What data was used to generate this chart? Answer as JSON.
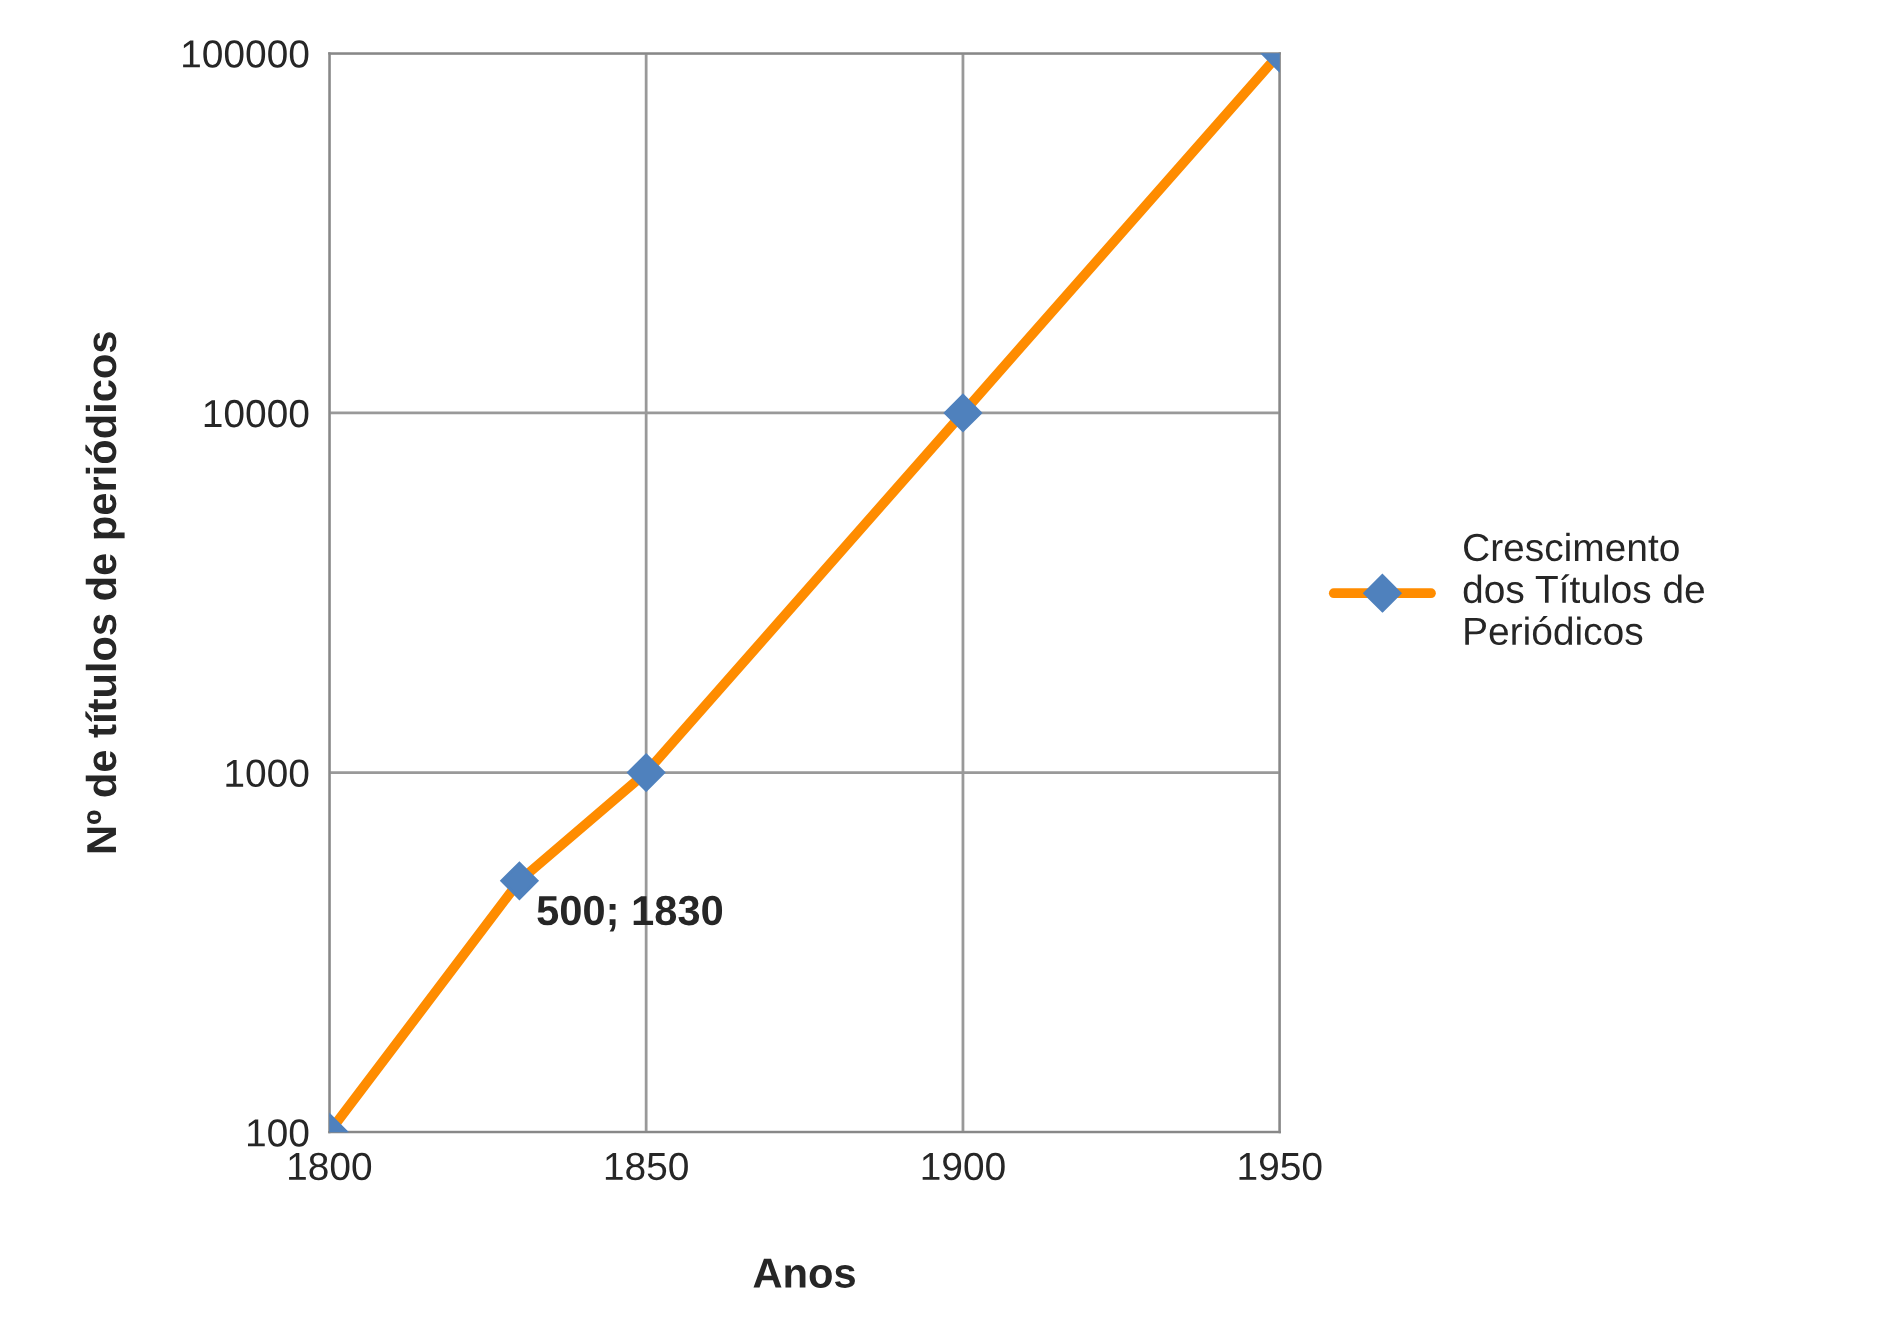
{
  "chart_data": {
    "type": "line",
    "xlabel": "Anos",
    "ylabel": "Nº de títulos de periódicos",
    "x": [
      1800,
      1830,
      1850,
      1900,
      1950
    ],
    "series": [
      {
        "name": "Crescimento\ndos Títulos de\nPeriódicos",
        "color": "#ff8c00",
        "values": [
          100,
          500,
          1000,
          10000,
          100000
        ]
      }
    ],
    "annotations": [
      {
        "text": "500; 1830",
        "x": 1830,
        "y": 500
      }
    ],
    "xlim": [
      1800,
      1950
    ],
    "xticks": [
      1800,
      1850,
      1900,
      1950
    ],
    "ylim": [
      100,
      100000
    ],
    "yticks": [
      100,
      1000,
      10000,
      100000
    ],
    "log": "y",
    "grid": true,
    "legend": "right",
    "marker": "diamond",
    "line_style": "solid"
  }
}
